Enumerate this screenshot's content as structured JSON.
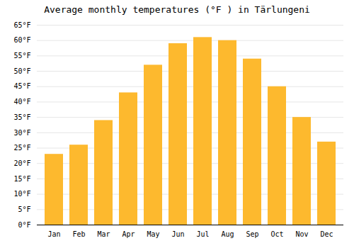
{
  "chart_data": {
    "type": "bar",
    "title": "Average monthly temperatures (°F ) in Tärlungeni",
    "categories": [
      "Jan",
      "Feb",
      "Mar",
      "Apr",
      "May",
      "Jun",
      "Jul",
      "Aug",
      "Sep",
      "Oct",
      "Nov",
      "Dec"
    ],
    "values": [
      23,
      26,
      34,
      43,
      52,
      59,
      61,
      60,
      54,
      45,
      35,
      27
    ],
    "color": "#FDB92E",
    "ylim": [
      0,
      65
    ],
    "yticks": [
      {
        "value": 0,
        "label": "0°F"
      },
      {
        "value": 5,
        "label": "5°F"
      },
      {
        "value": 10,
        "label": "10°F"
      },
      {
        "value": 15,
        "label": "15°F"
      },
      {
        "value": 20,
        "label": "20°F"
      },
      {
        "value": 25,
        "label": "25°F"
      },
      {
        "value": 30,
        "label": "30°F"
      },
      {
        "value": 35,
        "label": "35°F"
      },
      {
        "value": 40,
        "label": "40°F"
      },
      {
        "value": 45,
        "label": "45°F"
      },
      {
        "value": 50,
        "label": "50°F"
      },
      {
        "value": 55,
        "label": "55°F"
      },
      {
        "value": 60,
        "label": "60°F"
      },
      {
        "value": 65,
        "label": "65°F"
      }
    ],
    "grid": true
  }
}
